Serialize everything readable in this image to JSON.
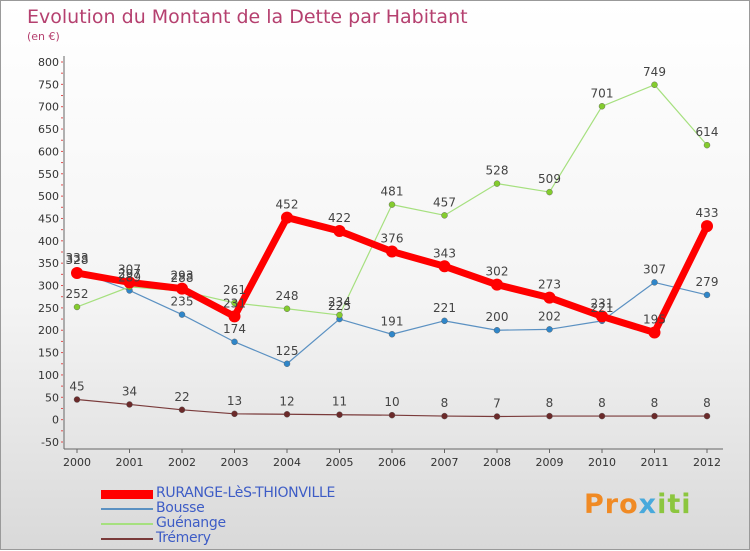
{
  "title": "Evolution du Montant de la Dette par Habitant",
  "unit": "(en €)",
  "brand": "Proxiti",
  "chart_data": {
    "type": "line",
    "title": "Evolution du Montant de la Dette par Habitant",
    "subtitle": "(en €)",
    "x": [
      2000,
      2001,
      2002,
      2003,
      2004,
      2005,
      2006,
      2007,
      2008,
      2009,
      2010,
      2011,
      2012
    ],
    "ylim": [
      -50,
      800
    ],
    "yticks": [
      -50,
      0,
      50,
      100,
      150,
      200,
      250,
      300,
      350,
      400,
      450,
      500,
      550,
      600,
      650,
      700,
      750,
      800
    ],
    "grid": false,
    "legend_position": "bottom-left",
    "series": [
      {
        "name": "RURANGE-LèS-THIONVILLE",
        "values": [
          328,
          307,
          293,
          231,
          452,
          422,
          376,
          343,
          302,
          273,
          231,
          195,
          433
        ],
        "color": "#ff0000",
        "marker": "#ff0000"
      },
      {
        "name": "Bousse",
        "values": [
          333,
          289,
          235,
          174,
          125,
          225,
          191,
          221,
          200,
          202,
          221,
          307,
          279
        ],
        "color": "#5b91c2",
        "marker": "#2f86c9"
      },
      {
        "name": "Guénange",
        "values": [
          252,
          297,
          288,
          261,
          248,
          234,
          481,
          457,
          528,
          509,
          701,
          749,
          614
        ],
        "color": "#a6e07f",
        "marker": "#84cc2e"
      },
      {
        "name": "Trémery",
        "values": [
          45,
          34,
          22,
          13,
          12,
          11,
          10,
          8,
          7,
          8,
          8,
          8,
          8
        ],
        "color": "#7a3b3b",
        "marker": "#6b2a2a"
      }
    ]
  }
}
